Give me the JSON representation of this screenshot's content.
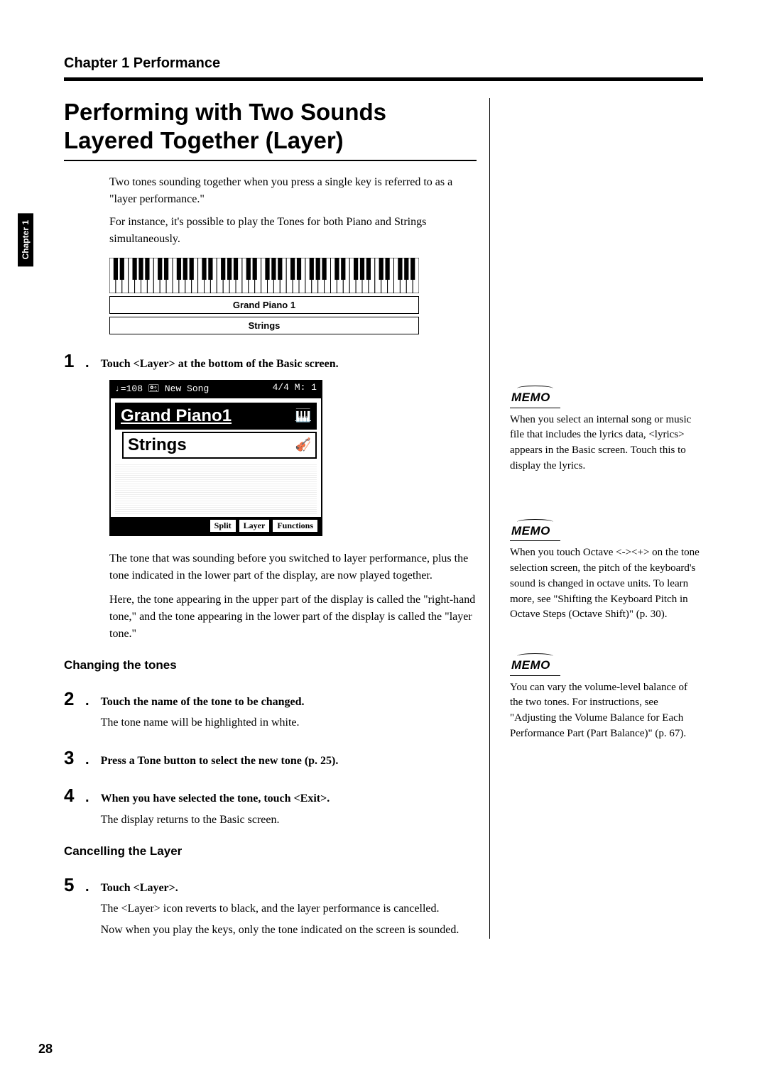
{
  "chapter_header": "Chapter 1 Performance",
  "side_tab": "Chapter 1",
  "title": "Performing with Two Sounds Layered Together (Layer)",
  "intro": {
    "p1": "Two tones sounding together when you press a single key is referred to as a \"layer performance.\"",
    "p2": "For instance, it's possible to play the Tones for both Piano and Strings simultaneously."
  },
  "tone_boxes": {
    "t1": "Grand Piano 1",
    "t2": "Strings"
  },
  "screenshot": {
    "top_left": "♩=108 🖭 New Song",
    "top_right": "4/4  M:   1",
    "tone1": "Grand Piano1",
    "tone2": "Strings",
    "btn1": "Split",
    "btn2": "Layer",
    "btn3": "Functions"
  },
  "steps": {
    "s1": {
      "num": "1",
      "instr": "Touch <Layer> at the bottom of the Basic screen."
    },
    "after1": {
      "p1": "The tone that was sounding before you switched to layer performance, plus the tone indicated in the lower part of the display, are now played together.",
      "p2": "Here, the tone appearing in the upper part of the display is called the \"right-hand tone,\" and the tone appearing in the lower part of the display is called the \"layer tone.\""
    },
    "subhead_change": "Changing the tones",
    "s2": {
      "num": "2",
      "instr": "Touch the name of the tone to be changed.",
      "body": "The tone name will be highlighted in white."
    },
    "s3": {
      "num": "3",
      "instr": "Press a Tone button to select the new tone (p. 25)."
    },
    "s4": {
      "num": "4",
      "instr": "When you have selected the tone, touch <Exit>.",
      "body": "The display returns to the Basic screen."
    },
    "subhead_cancel": "Cancelling the Layer",
    "s5": {
      "num": "5",
      "instr": "Touch <Layer>.",
      "b1": "The <Layer> icon reverts to black, and the layer performance is cancelled.",
      "b2": "Now when you play the keys, only the tone indicated on the screen is sounded."
    }
  },
  "memos": {
    "label": "MEMO",
    "m1": "When you select an internal song or music file that includes the lyrics data, <lyrics> appears in the Basic screen. Touch this to display the lyrics.",
    "m2": "When you touch Octave <-><+> on the tone selection screen, the pitch of the keyboard's sound is changed in octave units. To learn more, see \"Shifting the Keyboard Pitch in Octave Steps (Octave Shift)\" (p. 30).",
    "m3": "You can vary the volume-level balance of the two tones. For instructions, see \"Adjusting the Volume Balance for Each Performance Part (Part Balance)\" (p. 67)."
  },
  "page_number": "28",
  "keyboard": {
    "octaves": 7,
    "white_key_w": 8.9,
    "height": 50
  }
}
